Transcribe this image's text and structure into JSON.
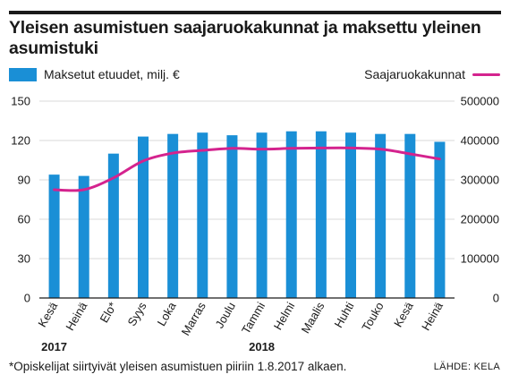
{
  "title": "Yleisen asumistuen saajaruokakunnat ja maksettu yleinen asumistuki",
  "legend": {
    "bars": "Maksetut etuudet, milj. €",
    "line": "Saajaruokakunnat"
  },
  "footnote": "*Opiskelijat siirtyivät yleisen asumistuen piiriin 1.8.2017 alkaen.",
  "source": "LÄHDE: KELA",
  "colors": {
    "bar": "#1a8fd6",
    "line": "#d4238e",
    "axis": "#1a1a1a"
  },
  "chart_data": {
    "type": "bar",
    "categories": [
      "Kesä",
      "Heinä",
      "Elo*",
      "Syys",
      "Loka",
      "Marras",
      "Joulu",
      "Tammi",
      "Helmi",
      "Maalis",
      "Huhti",
      "Touko",
      "Kesä",
      "Heinä"
    ],
    "year_labels": [
      {
        "label": "2017",
        "category_index": 0
      },
      {
        "label": "2018",
        "category_index": 7
      }
    ],
    "series": [
      {
        "name": "Maksetut etuudet, milj. €",
        "type": "bar",
        "axis": "left",
        "values": [
          94,
          93,
          110,
          123,
          125,
          126,
          124,
          126,
          127,
          127,
          126,
          125,
          125,
          119
        ]
      },
      {
        "name": "Saajaruokakunnat",
        "type": "line",
        "axis": "right",
        "values": [
          275000,
          275000,
          305000,
          348000,
          368000,
          375000,
          380000,
          378000,
          380000,
          381000,
          381000,
          378000,
          366000,
          353000
        ]
      }
    ],
    "left_axis": {
      "ylim": [
        0,
        150
      ],
      "ticks": [
        "0",
        "30",
        "60",
        "90",
        "120",
        "150"
      ]
    },
    "right_axis": {
      "ylim": [
        0,
        500000
      ],
      "ticks": [
        "0",
        "100000",
        "200000",
        "300000",
        "400000",
        "500000"
      ]
    },
    "grid": true
  }
}
